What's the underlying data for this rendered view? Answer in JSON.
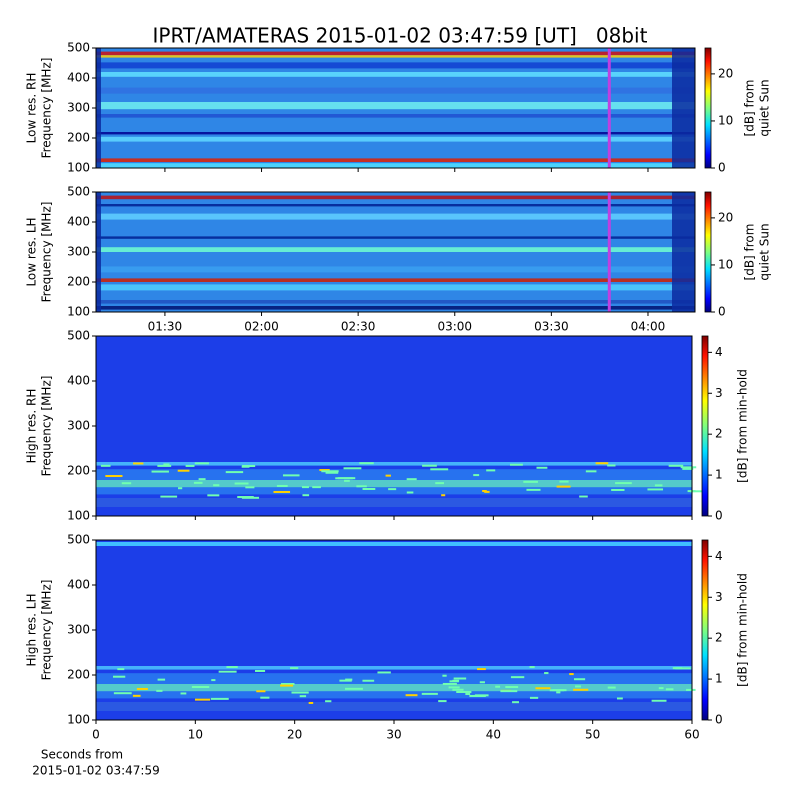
{
  "chart_data": [
    {
      "type": "heatmap",
      "title": "IPRT/AMATERAS 2015-01-02 03:47:59 [UT]   08bit",
      "ylabel": [
        "Low res. RH",
        "Frequency [MHz]"
      ],
      "ylim": [
        100,
        500
      ],
      "yticks": [
        100,
        200,
        300,
        400,
        500
      ],
      "xlim": [
        68.6,
        254.6
      ],
      "show_xtick_labels": false,
      "xticks": [
        {
          "value": 90,
          "label": "01:30"
        },
        {
          "value": 120,
          "label": "02:00"
        },
        {
          "value": 150,
          "label": "02:30"
        },
        {
          "value": 180,
          "label": "03:00"
        },
        {
          "value": 210,
          "label": "03:30"
        },
        {
          "value": 240,
          "label": "04:00"
        }
      ],
      "marker_x": 227.98,
      "marker_color": "#c040e0",
      "colormap": "jet",
      "colorbar": {
        "label": [
          "[dB] from",
          "quiet Sun"
        ],
        "lim": [
          0,
          25.5
        ],
        "ticks": [
          0,
          10,
          20
        ]
      }
    },
    {
      "type": "heatmap",
      "ylabel": [
        "Low res. LH",
        "Frequency [MHz]"
      ],
      "ylim": [
        100,
        500
      ],
      "yticks": [
        100,
        200,
        300,
        400,
        500
      ],
      "xlim": [
        68.6,
        254.6
      ],
      "show_xtick_labels": true,
      "xticks": [
        {
          "value": 90,
          "label": "01:30"
        },
        {
          "value": 120,
          "label": "02:00"
        },
        {
          "value": 150,
          "label": "02:30"
        },
        {
          "value": 180,
          "label": "03:00"
        },
        {
          "value": 210,
          "label": "03:30"
        },
        {
          "value": 240,
          "label": "04:00"
        }
      ],
      "marker_x": 227.98,
      "marker_color": "#c040e0",
      "colormap": "jet",
      "colorbar": {
        "label": [
          "[dB] from",
          "quiet Sun"
        ],
        "lim": [
          0,
          25.5
        ],
        "ticks": [
          0,
          10,
          20
        ]
      }
    },
    {
      "type": "heatmap",
      "ylabel": [
        "High res. RH",
        "Frequency [MHz]"
      ],
      "ylim": [
        100,
        500
      ],
      "yticks": [
        100,
        200,
        300,
        400,
        500
      ],
      "xlim": [
        0,
        60
      ],
      "xticks": [
        0,
        10,
        20,
        30,
        40,
        50,
        60
      ],
      "show_xtick_labels": false,
      "colormap": "jet",
      "colorbar": {
        "label": [
          "[dB] from min-hold"
        ],
        "lim": [
          0,
          4.4
        ],
        "ticks": [
          0,
          1,
          2,
          3,
          4
        ]
      }
    },
    {
      "type": "heatmap",
      "ylabel": [
        "High res. LH",
        "Frequency [MHz]"
      ],
      "ylim": [
        100,
        500
      ],
      "yticks": [
        100,
        200,
        300,
        400,
        500
      ],
      "xlim": [
        0,
        60
      ],
      "xticks": [
        0,
        10,
        20,
        30,
        40,
        50,
        60
      ],
      "show_xtick_labels": true,
      "xlabel": [
        "Seconds from",
        "2015-01-02 03:47:59"
      ],
      "colormap": "jet",
      "colorbar": {
        "label": [
          "[dB] from min-hold"
        ],
        "lim": [
          0,
          4.4
        ],
        "ticks": [
          0,
          1,
          2,
          3,
          4
        ]
      }
    }
  ]
}
